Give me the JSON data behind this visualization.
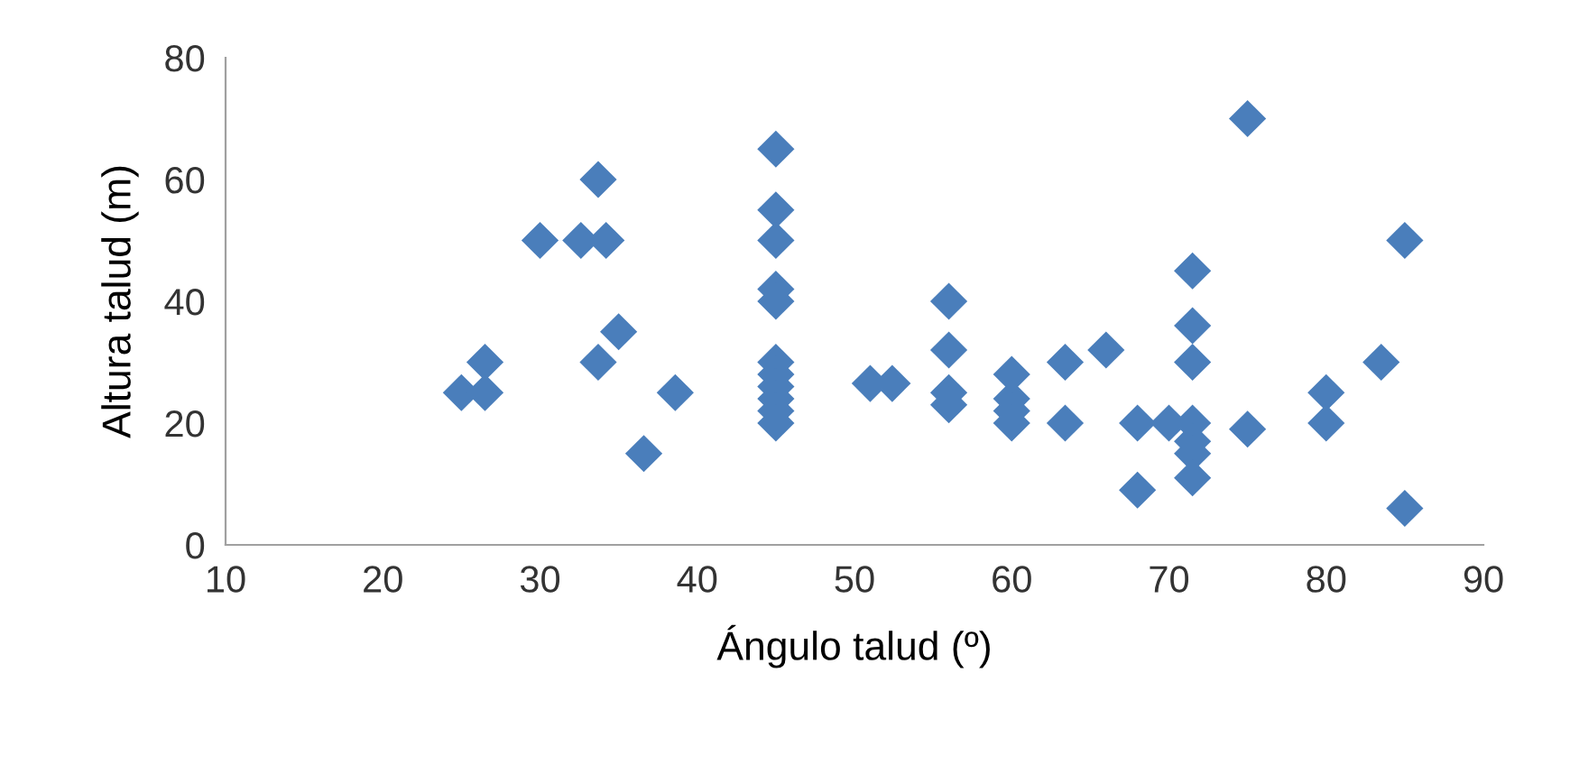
{
  "chart_data": {
    "type": "scatter",
    "xlabel": "Ángulo talud (º)",
    "ylabel": "Altura talud (m)",
    "xlim": [
      10,
      90
    ],
    "xticks": [
      10,
      20,
      30,
      40,
      50,
      60,
      70,
      80,
      90
    ],
    "ylim": [
      0,
      80
    ],
    "yticks": [
      0,
      20,
      40,
      60,
      80
    ],
    "grid": false,
    "marker": "diamond",
    "series": [
      {
        "color": "#4a7ebb",
        "x": [
          25,
          26.5,
          26.5,
          30,
          32.6,
          34.2,
          33.7,
          33.7,
          35,
          36.6,
          38.6,
          45,
          45,
          45,
          45,
          45,
          45,
          45,
          45,
          45,
          45,
          45,
          51,
          52.4,
          56,
          56,
          56,
          56,
          60,
          60,
          60,
          60,
          63.4,
          63.4,
          66,
          68,
          68,
          70,
          71.5,
          71.5,
          71.5,
          71.5,
          71.5,
          71.5,
          71.5,
          75,
          75,
          80,
          80,
          83.5,
          85,
          85
        ],
        "values": [
          25,
          30,
          25,
          50,
          50,
          50,
          60,
          30,
          35,
          15,
          25,
          65,
          55,
          50,
          42,
          40,
          30,
          28,
          26,
          24,
          22,
          20,
          26.5,
          26.5,
          40,
          32,
          25,
          23,
          28,
          24,
          22,
          20,
          30,
          20,
          32,
          20,
          9,
          20,
          20,
          17,
          15,
          11,
          45,
          36,
          30,
          70,
          19,
          25,
          20,
          30,
          50,
          6
        ]
      }
    ]
  }
}
